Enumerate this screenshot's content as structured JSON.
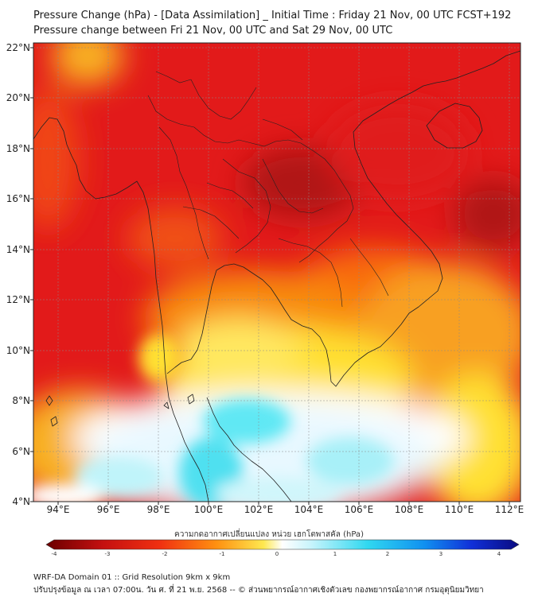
{
  "header": {
    "title_line1": "Pressure Change (hPa) - [Data Assimilation] _ Initial Time : Friday 21 Nov, 00 UTC FCST+192",
    "title_line2": "Pressure change between Fri 21 Nov, 00 UTC and Sat 29 Nov, 00 UTC"
  },
  "map": {
    "lat_labels": [
      "22°N",
      "20°N",
      "18°N",
      "16°N",
      "14°N",
      "12°N",
      "10°N",
      "8°N",
      "6°N",
      "4°N"
    ],
    "lon_labels": [
      "94°E",
      "96°E",
      "98°E",
      "100°E",
      "102°E",
      "104°E",
      "106°E",
      "108°E",
      "110°E",
      "112°E"
    ],
    "lat_range": [
      4,
      22.2
    ],
    "lon_range": [
      93,
      112.5
    ],
    "field_colors": {
      "dark_red": "#b01818",
      "red": "#e21a1a",
      "orange": "#f86a10",
      "yellow": "#ffe030",
      "white": "#ffffff",
      "cyan": "#50e0f0"
    }
  },
  "colorbar": {
    "title": "ความกดอากาศเปลี่ยนแปลง หน่วย เฮกโตพาสคัล (hPa)",
    "ticks": [
      "-4",
      "-3",
      "-2",
      "-1",
      "0",
      "1",
      "2",
      "3",
      "4"
    ],
    "range": [
      -4,
      4
    ]
  },
  "footer": {
    "line1": "WRF-DA Domain 01 :: Grid Resolution 9km x 9km",
    "line2": "ปรับปรุงข้อมูล ณ เวลา 07:00น. วัน ศ. ที่ 21 พ.ย. 2568 -- © ส่วนพยากรณ์อากาศเชิงตัวเลข กองพยากรณ์อากาศ กรมอุตุนิยมวิทยา"
  }
}
